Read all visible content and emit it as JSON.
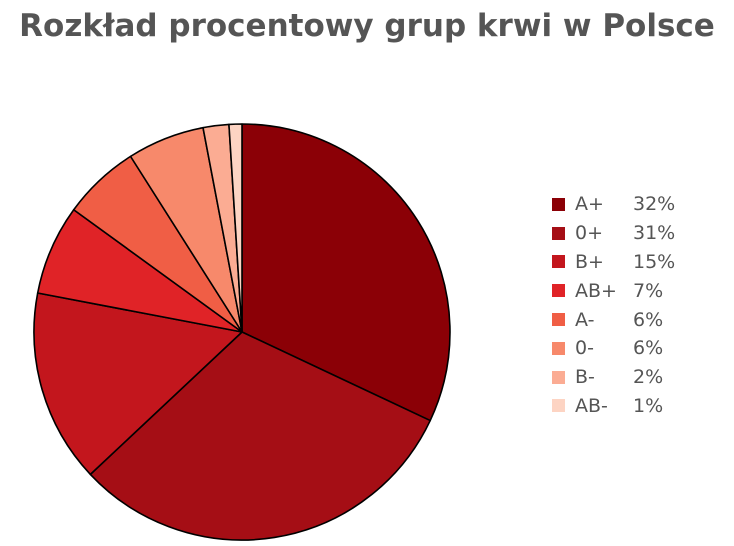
{
  "chart_data": {
    "type": "pie",
    "title": "Rozkład procentowy grup krwi w Polsce",
    "categories": [
      "A+",
      "0+",
      "B+",
      "AB+",
      "A-",
      "0-",
      "B-",
      "AB-"
    ],
    "values": [
      32,
      31,
      15,
      7,
      6,
      6,
      2,
      1
    ],
    "value_labels": [
      "32%",
      "31%",
      "15%",
      "7%",
      "6%",
      "6%",
      "2%",
      "1%"
    ],
    "colors": [
      "#8b0006",
      "#a50e15",
      "#c3161d",
      "#e02327",
      "#f05e45",
      "#f7896b",
      "#fbac93",
      "#fdd4c3"
    ],
    "legend_position": "right",
    "start": "top",
    "direction": "clockwise"
  }
}
